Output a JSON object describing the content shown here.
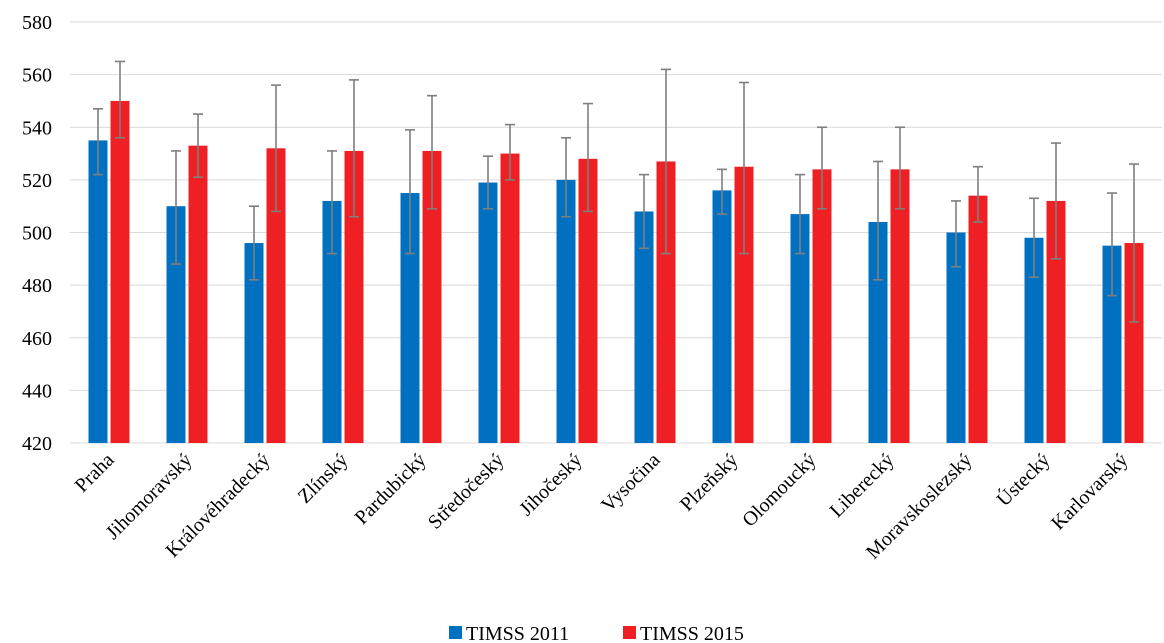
{
  "chart_data": {
    "type": "bar",
    "title": "",
    "xlabel": "",
    "ylabel": "",
    "ylim": [
      420,
      580
    ],
    "yticks": [
      420,
      440,
      460,
      480,
      500,
      520,
      540,
      560,
      580
    ],
    "grid": true,
    "legend_position": "bottom-center",
    "categories": [
      "Praha",
      "Jihomoravský",
      "Královéhradecký",
      "Zlínský",
      "Pardubický",
      "Středočeský",
      "Jihočeský",
      "Vysočina",
      "Plzeňský",
      "Olomoucký",
      "Liberecký",
      "Moravskoslezský",
      "Ústecký",
      "Karlovarský"
    ],
    "series": [
      {
        "name": "TIMSS 2011",
        "color": "#0070c0",
        "values": [
          535,
          510,
          496,
          512,
          515,
          519,
          520,
          508,
          516,
          507,
          504,
          500,
          498,
          495
        ],
        "err_low": [
          522,
          488,
          482,
          492,
          492,
          509,
          506,
          494,
          507,
          492,
          482,
          487,
          483,
          476
        ],
        "err_high": [
          547,
          531,
          510,
          531,
          539,
          529,
          536,
          522,
          524,
          522,
          527,
          512,
          513,
          515
        ]
      },
      {
        "name": "TIMSS 2015",
        "color": "#ee2024",
        "values": [
          550,
          533,
          532,
          531,
          531,
          530,
          528,
          527,
          525,
          524,
          524,
          514,
          512,
          496
        ],
        "err_low": [
          536,
          521,
          508,
          506,
          509,
          520,
          508,
          492,
          492,
          509,
          509,
          504,
          490,
          466
        ],
        "err_high": [
          565,
          545,
          556,
          558,
          552,
          541,
          549,
          562,
          557,
          540,
          540,
          525,
          534,
          526
        ]
      }
    ]
  }
}
